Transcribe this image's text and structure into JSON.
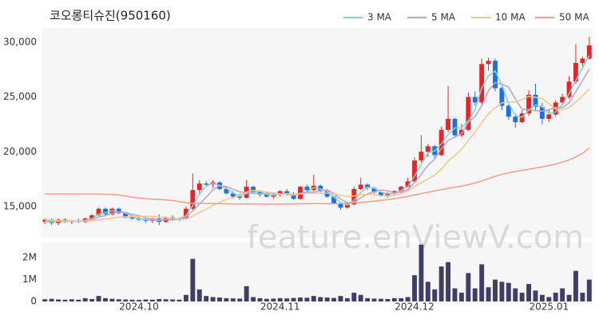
{
  "chart_data": {
    "type": "candlestick",
    "title": "코오롱티슈진(950160)",
    "watermark": "feature.enViewV.com",
    "legend": "top-right",
    "grid": false,
    "up_color": "#e8232a",
    "down_color": "#1f6fde",
    "volume_color": "#3f3f66",
    "categories": [
      null,
      null,
      null,
      null,
      null,
      null,
      null,
      null,
      null,
      null,
      null,
      null,
      null,
      null,
      "2024.10",
      null,
      null,
      null,
      null,
      null,
      null,
      null,
      null,
      null,
      null,
      null,
      null,
      null,
      null,
      null,
      null,
      null,
      null,
      null,
      null,
      "2024.11",
      null,
      null,
      null,
      null,
      null,
      null,
      null,
      null,
      null,
      null,
      null,
      null,
      null,
      null,
      null,
      null,
      null,
      null,
      null,
      "2024.12",
      null,
      null,
      null,
      null,
      null,
      null,
      null,
      null,
      null,
      null,
      null,
      null,
      null,
      null,
      null,
      null,
      null,
      null,
      null,
      "2025.01",
      null,
      null,
      null,
      null,
      null,
      null
    ],
    "open": [
      13600,
      13800,
      13500,
      13800,
      13600,
      13700,
      13600,
      13900,
      14200,
      14800,
      14300,
      14800,
      14400,
      14000,
      13900,
      13800,
      13700,
      13900,
      13600,
      14000,
      13800,
      13900,
      14800,
      16500,
      17100,
      17000,
      17200,
      16600,
      16200,
      15900,
      15800,
      16800,
      16300,
      16100,
      15900,
      16100,
      16400,
      16100,
      15700,
      16800,
      16500,
      16900,
      16400,
      15900,
      15300,
      14900,
      15200,
      16600,
      17000,
      16700,
      16300,
      16000,
      16200,
      16400,
      16800,
      17300,
      19200,
      20000,
      20500,
      19700,
      22000,
      23000,
      21500,
      22000,
      25000,
      24500,
      28000,
      28300,
      25800,
      24200,
      23200,
      22700,
      23500,
      25200,
      24100,
      23000,
      23400,
      24500,
      25000,
      26400,
      28100,
      28500
    ],
    "high": [
      13900,
      13900,
      13900,
      13900,
      13800,
      13900,
      14000,
      14300,
      14900,
      14900,
      14900,
      14900,
      14500,
      14200,
      14100,
      14000,
      14000,
      14300,
      14100,
      14200,
      14000,
      15000,
      18000,
      17400,
      17300,
      17400,
      17300,
      16800,
      16400,
      16200,
      17400,
      16900,
      16500,
      16300,
      16200,
      16500,
      16600,
      16300,
      16900,
      17000,
      17900,
      17000,
      16600,
      16000,
      15400,
      15300,
      16800,
      17600,
      17100,
      16800,
      16400,
      16300,
      16500,
      16900,
      17600,
      19500,
      21500,
      20700,
      20600,
      22300,
      26000,
      23100,
      22500,
      25400,
      25500,
      28500,
      28600,
      28500,
      26000,
      24400,
      23500,
      23800,
      25600,
      26200,
      24500,
      23900,
      24700,
      25300,
      26900,
      29800,
      28700,
      30500
    ],
    "low": [
      13400,
      13300,
      13300,
      13500,
      13400,
      13500,
      13500,
      13800,
      14100,
      14200,
      14200,
      14300,
      13900,
      13800,
      13700,
      13500,
      13500,
      13300,
      13500,
      13700,
      13700,
      13800,
      14700,
      16200,
      16800,
      16700,
      16500,
      16100,
      15700,
      15600,
      15700,
      16200,
      15900,
      15800,
      15700,
      15900,
      16000,
      15600,
      15600,
      16400,
      16400,
      16300,
      15800,
      15200,
      14700,
      14800,
      15100,
      16500,
      16500,
      16200,
      15900,
      15800,
      16000,
      16200,
      16700,
      17200,
      19000,
      19500,
      19400,
      19600,
      21800,
      21300,
      21300,
      21900,
      24200,
      24300,
      27400,
      25500,
      23800,
      22900,
      22200,
      22600,
      23300,
      23800,
      22500,
      22700,
      23200,
      24200,
      24800,
      26200,
      27800,
      28400
    ],
    "close": [
      13800,
      13500,
      13800,
      13600,
      13700,
      13600,
      13900,
      14200,
      14800,
      14300,
      14800,
      14400,
      14000,
      13900,
      13800,
      13700,
      13900,
      13600,
      14000,
      13800,
      13900,
      14800,
      16500,
      17100,
      17000,
      17200,
      16600,
      16200,
      15900,
      15800,
      16800,
      16300,
      16100,
      15900,
      16100,
      16400,
      16100,
      15700,
      16800,
      16500,
      16900,
      16400,
      15900,
      15300,
      14900,
      15200,
      16600,
      17000,
      16700,
      16300,
      16000,
      16200,
      16400,
      16800,
      17300,
      19200,
      20000,
      20500,
      19700,
      22000,
      23000,
      21500,
      22000,
      25000,
      24500,
      28000,
      28300,
      25800,
      24200,
      23200,
      22700,
      23500,
      25200,
      24100,
      23000,
      23400,
      24500,
      25000,
      26400,
      28100,
      28500,
      29700
    ],
    "volume": [
      100000,
      120000,
      90000,
      80000,
      100000,
      80000,
      150000,
      110000,
      250000,
      150000,
      120000,
      100000,
      90000,
      80000,
      70000,
      90000,
      80000,
      110000,
      100000,
      90000,
      80000,
      300000,
      1950000,
      550000,
      250000,
      200000,
      180000,
      150000,
      140000,
      130000,
      700000,
      200000,
      150000,
      120000,
      130000,
      150000,
      140000,
      160000,
      180000,
      170000,
      250000,
      200000,
      180000,
      160000,
      250000,
      150000,
      400000,
      300000,
      150000,
      130000,
      120000,
      110000,
      150000,
      150000,
      200000,
      1200000,
      2600000,
      900000,
      550000,
      1600000,
      1800000,
      600000,
      400000,
      1300000,
      600000,
      1700000,
      650000,
      1000000,
      900000,
      850000,
      600000,
      400000,
      800000,
      500000,
      300000,
      200000,
      400000,
      600000,
      300000,
      1400000,
      400000,
      1000000
    ],
    "series": [
      {
        "name": "3 MA",
        "color": "#7fd3d8",
        "values": [
          13650,
          13600,
          13700,
          13630,
          13700,
          13630,
          13730,
          13900,
          14300,
          14430,
          14630,
          14500,
          14400,
          14100,
          13900,
          13800,
          13800,
          13730,
          13830,
          13800,
          13900,
          14170,
          15070,
          16130,
          16870,
          17100,
          16930,
          16670,
          16230,
          15970,
          16170,
          16300,
          16400,
          16100,
          16030,
          16130,
          16200,
          16070,
          16200,
          16330,
          16730,
          16600,
          16400,
          15870,
          15370,
          15130,
          15570,
          16270,
          16770,
          16670,
          16330,
          16170,
          16200,
          16470,
          16830,
          17770,
          18830,
          19900,
          20070,
          20730,
          21570,
          22170,
          22170,
          22830,
          23830,
          25830,
          26930,
          27370,
          26100,
          24400,
          23370,
          23130,
          23800,
          24270,
          24100,
          23500,
          23630,
          24300,
          25300,
          26500,
          27670,
          28770
        ]
      },
      {
        "name": "5 MA",
        "color": "#b9a3c9",
        "values": [
          13700,
          13650,
          13650,
          13650,
          13680,
          13640,
          13720,
          13800,
          14040,
          14160,
          14400,
          14520,
          14460,
          14280,
          14180,
          13960,
          13860,
          13780,
          13780,
          13800,
          13840,
          14020,
          14600,
          15220,
          15860,
          16520,
          16880,
          16820,
          16580,
          16340,
          16260,
          16200,
          16180,
          16180,
          16240,
          16160,
          16100,
          16040,
          16220,
          16300,
          16300,
          16460,
          16520,
          16200,
          15680,
          15340,
          15380,
          15800,
          16160,
          16360,
          16520,
          16440,
          16240,
          16340,
          16540,
          17180,
          17940,
          18760,
          19340,
          20280,
          21040,
          21340,
          21640,
          22700,
          23200,
          24200,
          25560,
          26320,
          26160,
          25900,
          24840,
          23880,
          23860,
          23740,
          23700,
          23840,
          24040,
          24000,
          24460,
          25480,
          26500,
          27540
        ]
      },
      {
        "name": "10 MA",
        "color": "#f3c68c",
        "values": [
          13800,
          13750,
          13720,
          13700,
          13690,
          13680,
          13690,
          13710,
          13790,
          13850,
          13950,
          14040,
          14060,
          14090,
          14100,
          14110,
          14110,
          14050,
          13970,
          13920,
          13830,
          13870,
          14120,
          14440,
          14760,
          15110,
          15380,
          15640,
          15830,
          16030,
          16330,
          16480,
          16440,
          16320,
          16230,
          16150,
          16100,
          16050,
          16140,
          16210,
          16220,
          16230,
          16210,
          16150,
          16030,
          15910,
          15960,
          16100,
          16110,
          16090,
          16000,
          15980,
          16030,
          16180,
          16420,
          16830,
          17170,
          17520,
          17860,
          18430,
          19130,
          19660,
          20220,
          21040,
          21760,
          22640,
          23470,
          24000,
          24450,
          24570,
          24540,
          24740,
          25060,
          24970,
          24820,
          24390,
          23890,
          23810,
          24030,
          24530,
          25110,
          25730
        ]
      },
      {
        "name": "50 MA",
        "color": "#f29c85",
        "values": [
          16150,
          16150,
          16150,
          16150,
          16140,
          16140,
          16140,
          16130,
          16130,
          16120,
          16110,
          16050,
          15950,
          15850,
          15780,
          15720,
          15680,
          15650,
          15600,
          15550,
          15450,
          15350,
          15300,
          15300,
          15280,
          15270,
          15260,
          15250,
          15240,
          15240,
          15240,
          15240,
          15230,
          15220,
          15220,
          15220,
          15230,
          15240,
          15250,
          15260,
          15270,
          15270,
          15260,
          15250,
          15270,
          15300,
          15340,
          15380,
          15430,
          15490,
          15560,
          15640,
          15720,
          15810,
          15920,
          16050,
          16180,
          16300,
          16420,
          16540,
          16650,
          16760,
          16860,
          16990,
          17150,
          17330,
          17550,
          17760,
          17930,
          18070,
          18190,
          18300,
          18400,
          18510,
          18620,
          18740,
          18880,
          19050,
          19260,
          19520,
          19850,
          20350
        ]
      }
    ],
    "ylim": [
      12160,
      31300
    ],
    "yticks": [
      {
        "value": 15000,
        "label": "15,000"
      },
      {
        "value": 20000,
        "label": "20,000"
      },
      {
        "value": 25000,
        "label": "25,000"
      },
      {
        "value": 30000,
        "label": "30,000"
      }
    ],
    "volume_ylim": [
      0,
      2700000
    ],
    "volume_yticks": [
      0,
      {
        "value": 1000000,
        "label": "1M"
      },
      {
        "value": 2000000,
        "label": "2M"
      }
    ]
  }
}
